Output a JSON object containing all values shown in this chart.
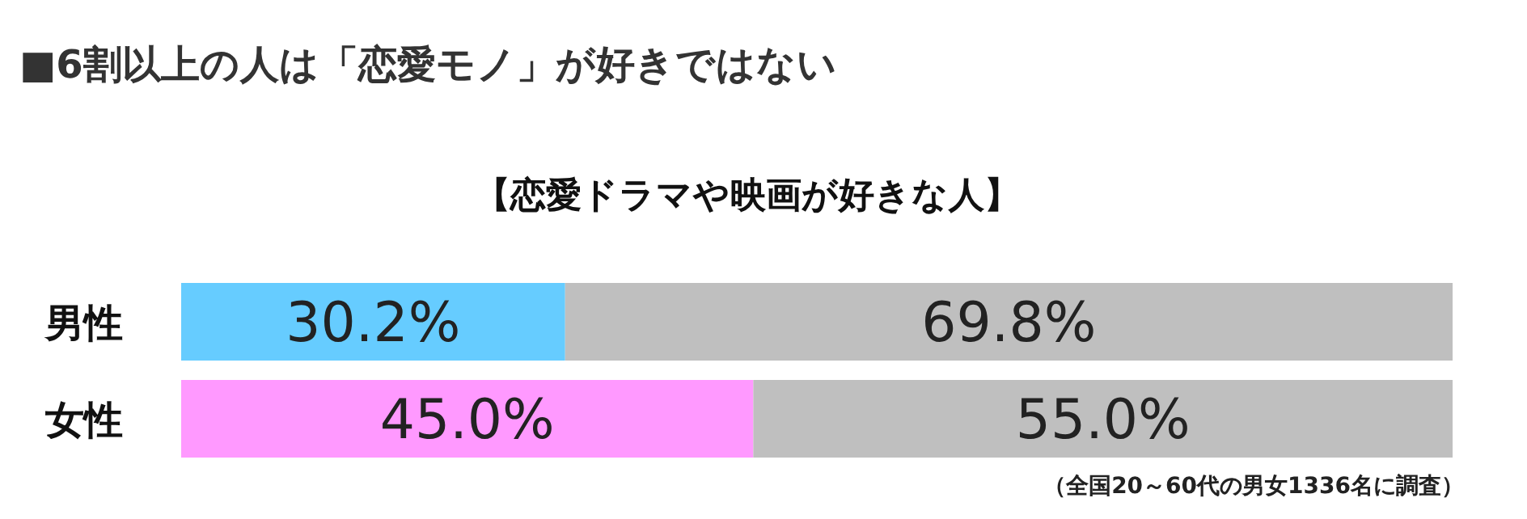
{
  "chart_data": {
    "type": "bar",
    "orientation": "horizontal",
    "stacked": true,
    "title": "■6割以上の人は「恋愛モノ」が好きではない",
    "subtitle": "【恋愛ドラマや映画が好きな人】",
    "categories": [
      "男性",
      "女性"
    ],
    "series": [
      {
        "colors": [
          "#66ccff",
          "#ff99ff"
        ],
        "values": [
          30.2,
          45.0
        ],
        "value_labels": [
          "30.2%",
          "45.0%"
        ]
      },
      {
        "color": "#bfbfbf",
        "values": [
          69.8,
          55.0
        ],
        "value_labels": [
          "69.8%",
          "55.0%"
        ]
      }
    ],
    "xlim": [
      0,
      100
    ],
    "annotations": [
      "（全国20～60代の男女1336名に調査）"
    ]
  }
}
